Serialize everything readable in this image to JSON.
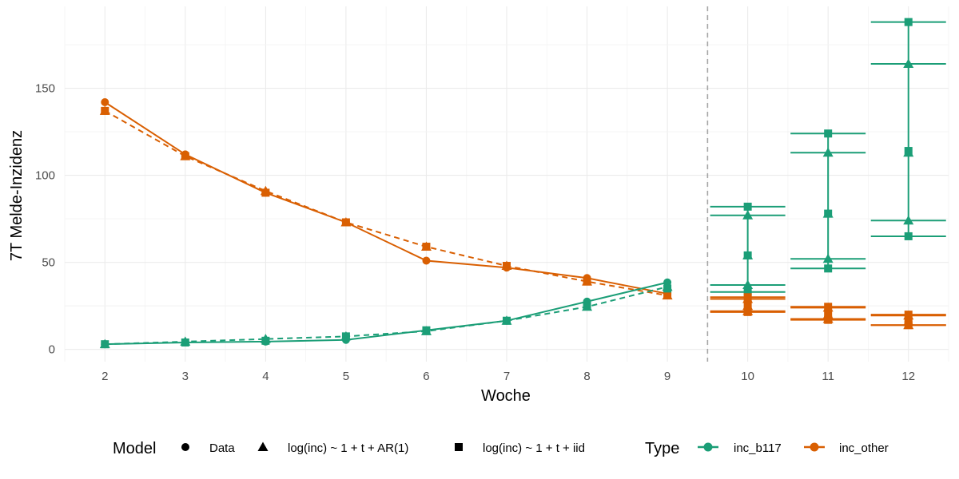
{
  "chart_data": {
    "type": "line",
    "title": "",
    "xlabel": "Woche",
    "ylabel": "7T Melde-Inzidenz",
    "xlim": [
      1.5,
      12.5
    ],
    "ylim": [
      -7,
      197
    ],
    "x_ticks": [
      2,
      3,
      4,
      5,
      6,
      7,
      8,
      9,
      10,
      11,
      12
    ],
    "y_ticks": [
      0,
      50,
      100,
      150
    ],
    "forecast_divider_x": 9.5,
    "grid": true,
    "legend_position": "bottom",
    "colors": {
      "inc_b117": "#1b9e77",
      "inc_other": "#d95f02",
      "divider": "#a6a6a6"
    },
    "model_legend": {
      "title": "Model",
      "items": [
        {
          "label": "Data",
          "shape": "circle"
        },
        {
          "label": "log(inc) ~ 1 + t + AR(1)",
          "shape": "triangle"
        },
        {
          "label": "log(inc) ~ 1 + t + iid",
          "shape": "square"
        }
      ]
    },
    "type_legend": {
      "title": "Type",
      "items": [
        {
          "label": "inc_b117",
          "color": "#1b9e77"
        },
        {
          "label": "inc_other",
          "color": "#d95f02"
        }
      ]
    },
    "series": [
      {
        "name": "inc_other",
        "model": "Data",
        "shape": "circle",
        "linestyle": "solid",
        "color": "#d95f02",
        "x": [
          2,
          3,
          4,
          5,
          6,
          7,
          8,
          9
        ],
        "values": [
          142,
          112,
          90,
          73,
          51,
          47,
          41,
          32
        ]
      },
      {
        "name": "inc_other",
        "model": "log(inc) ~ 1 + t + AR(1)",
        "shape": "triangle",
        "linestyle": "dashed",
        "color": "#d95f02",
        "x": [
          2,
          3,
          4,
          5,
          6,
          7,
          8,
          9
        ],
        "values": [
          137,
          111,
          91,
          73,
          59,
          48,
          39,
          31
        ]
      },
      {
        "name": "inc_other",
        "model": "log(inc) ~ 1 + t + iid",
        "shape": "square",
        "linestyle": "dashed",
        "color": "#d95f02",
        "x": [
          2,
          3,
          4,
          5,
          6,
          7,
          8,
          9
        ],
        "values": [
          137,
          111,
          90,
          73,
          59,
          48,
          39,
          32
        ]
      },
      {
        "name": "inc_b117",
        "model": "Data",
        "shape": "circle",
        "linestyle": "solid",
        "color": "#1b9e77",
        "x": [
          2,
          3,
          4,
          5,
          6,
          7,
          8,
          9
        ],
        "values": [
          3,
          4,
          4.5,
          5.5,
          11,
          16.5,
          27.5,
          38.5
        ]
      },
      {
        "name": "inc_b117",
        "model": "log(inc) ~ 1 + t + AR(1)",
        "shape": "triangle",
        "linestyle": "dashed",
        "color": "#1b9e77",
        "x": [
          2,
          3,
          4,
          5,
          6,
          7,
          8,
          9
        ],
        "values": [
          3,
          4.5,
          6,
          7.5,
          10.5,
          16.5,
          24.5,
          36
        ]
      },
      {
        "name": "inc_b117",
        "model": "log(inc) ~ 1 + t + iid",
        "shape": "square",
        "linestyle": "dashed",
        "color": "#1b9e77",
        "x": [
          2,
          3,
          4,
          5,
          6,
          7,
          8,
          9
        ],
        "values": [
          3,
          4,
          5,
          7.5,
          11,
          16.5,
          25,
          35
        ]
      }
    ],
    "forecasts": [
      {
        "name": "inc_b117",
        "x": 10,
        "color": "#1b9e77",
        "AR(1)": {
          "point": 54,
          "lower": 37,
          "upper": 77
        },
        "iid": {
          "point": 54,
          "lower": 33,
          "upper": 82
        }
      },
      {
        "name": "inc_b117",
        "x": 11,
        "color": "#1b9e77",
        "AR(1)": {
          "point": 78,
          "lower": 52,
          "upper": 113
        },
        "iid": {
          "point": 78,
          "lower": 46.5,
          "upper": 124
        }
      },
      {
        "name": "inc_b117",
        "x": 12,
        "color": "#1b9e77",
        "AR(1)": {
          "point": 113,
          "lower": 74,
          "upper": 164
        },
        "iid": {
          "point": 114,
          "lower": 65,
          "upper": 188
        }
      },
      {
        "name": "inc_other",
        "x": 10,
        "color": "#d95f02",
        "AR(1)": {
          "point": 25,
          "lower": 22,
          "upper": 29
        },
        "iid": {
          "point": 25,
          "lower": 21.5,
          "upper": 30
        }
      },
      {
        "name": "inc_other",
        "x": 11,
        "color": "#d95f02",
        "AR(1)": {
          "point": 20,
          "lower": 17.5,
          "upper": 24
        },
        "iid": {
          "point": 20,
          "lower": 17,
          "upper": 24.5
        }
      },
      {
        "name": "inc_other",
        "x": 12,
        "color": "#d95f02",
        "AR(1)": {
          "point": 16,
          "lower": 14,
          "upper": 19.5
        },
        "iid": {
          "point": 16,
          "lower": 14,
          "upper": 20
        }
      }
    ]
  }
}
